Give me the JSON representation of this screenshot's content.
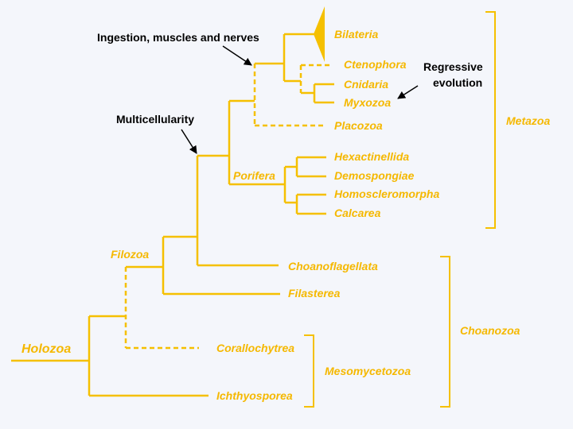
{
  "colors": {
    "tree": "#f5c000",
    "label": "#f5b800",
    "annotation": "#000000",
    "background": "#f4f6fb"
  },
  "taxa": {
    "bilateria": "Bilateria",
    "ctenophora": "Ctenophora",
    "cnidaria": "Cnidaria",
    "myxozoa": "Myxozoa",
    "placozoa": "Placozoa",
    "hexactinellida": "Hexactinellida",
    "demospongiae": "Demospongiae",
    "homoscleromorpha": "Homoscleromorpha",
    "calcarea": "Calcarea",
    "choanoflagellata": "Choanoflagellata",
    "filasterea": "Filasterea",
    "corallochytrea": "Corallochytrea",
    "ichthyosporea": "Ichthyosporea"
  },
  "clades": {
    "holozoa": "Holozoa",
    "filozoa": "Filozoa",
    "porifera": "Porifera"
  },
  "groups": {
    "metazoa": "Metazoa",
    "choanozoa": "Choanozoa",
    "mesomycetozoa": "Mesomycetozoa"
  },
  "annotations": {
    "ingestion": "Ingestion, muscles and nerves",
    "multicellularity": "Multicellularity",
    "regressive_line1": "Regressive",
    "regressive_line2": "evolution"
  }
}
